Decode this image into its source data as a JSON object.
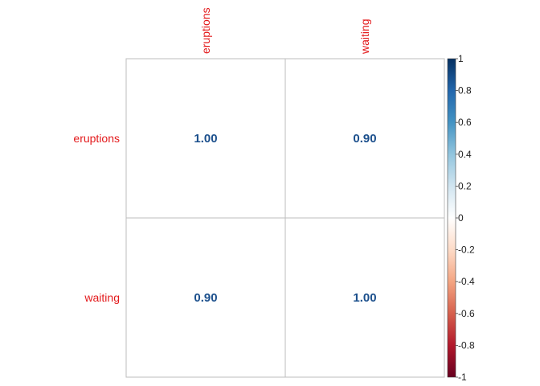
{
  "chart_data": {
    "type": "heatmap",
    "title": "",
    "method": "number",
    "rows": [
      "eruptions",
      "waiting"
    ],
    "columns": [
      "eruptions",
      "waiting"
    ],
    "values": [
      [
        1.0,
        0.9
      ],
      [
        0.9,
        1.0
      ]
    ],
    "value_labels": [
      [
        "1.00",
        "0.90"
      ],
      [
        "0.90",
        "1.00"
      ]
    ],
    "label_color": "#e31a1c",
    "value_color": "#1b4f8c",
    "grid_color": "#bdbdbd",
    "legend": {
      "position": "right",
      "range": [
        -1,
        1
      ],
      "ticks": [
        1,
        0.8,
        0.6,
        0.4,
        0.2,
        0,
        -0.2,
        -0.4,
        -0.6,
        -0.8,
        -1
      ],
      "tick_labels": [
        "1",
        "0.8",
        "0.6",
        "0.4",
        "0.2",
        "0",
        "-0.2",
        "-0.4",
        "-0.6",
        "-0.8",
        "-1"
      ],
      "colors": [
        "#67001f",
        "#b2182b",
        "#d6604d",
        "#f4a582",
        "#fddbc7",
        "#ffffff",
        "#d1e5f0",
        "#92c5de",
        "#4393c3",
        "#2166ac",
        "#053061"
      ]
    }
  }
}
